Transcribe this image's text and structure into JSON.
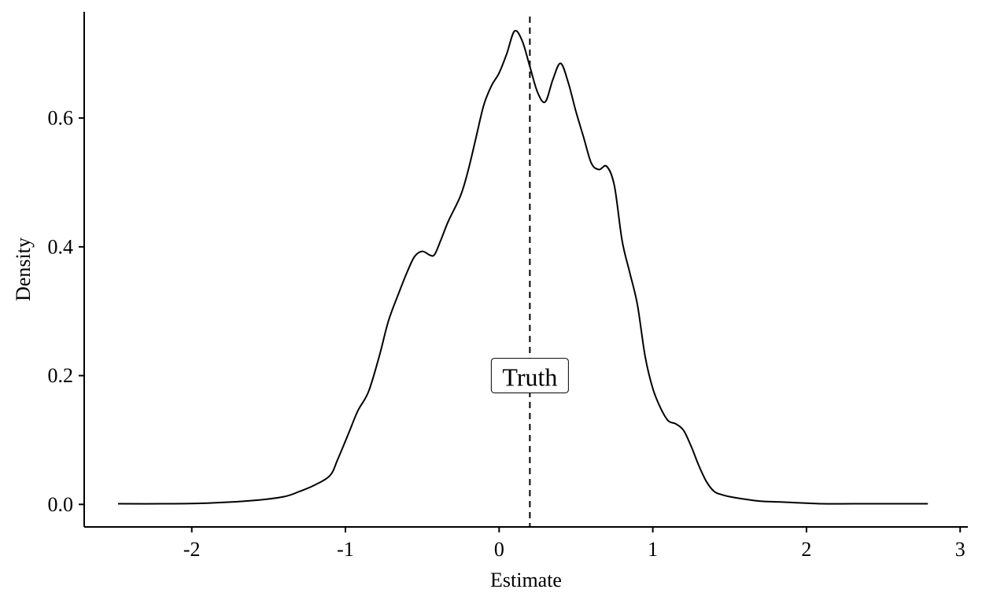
{
  "chart_data": {
    "type": "line",
    "subtype": "density",
    "title": "",
    "xlabel": "Estimate",
    "ylabel": "Density",
    "xlim": [
      -2.7,
      3.05
    ],
    "ylim": [
      -0.035,
      0.765
    ],
    "x_ticks": [
      -2,
      -1,
      0,
      1,
      2,
      3
    ],
    "x_tick_labels": [
      "-2",
      "-1",
      "0",
      "1",
      "2",
      "3"
    ],
    "y_ticks": [
      0.0,
      0.2,
      0.4,
      0.6
    ],
    "y_tick_labels": [
      "0.0",
      "0.2",
      "0.4",
      "0.6"
    ],
    "grid": false,
    "legend": "none",
    "series": [
      {
        "x": [
          -2.48,
          -2.2,
          -1.9,
          -1.6,
          -1.4,
          -1.3,
          -1.2,
          -1.1,
          -1.05,
          -0.98,
          -0.92,
          -0.85,
          -0.78,
          -0.72,
          -0.65,
          -0.6,
          -0.55,
          -0.5,
          -0.45,
          -0.42,
          -0.38,
          -0.33,
          -0.25,
          -0.2,
          -0.15,
          -0.1,
          -0.05,
          0.0,
          0.05,
          0.1,
          0.15,
          0.2,
          0.25,
          0.3,
          0.35,
          0.4,
          0.45,
          0.5,
          0.55,
          0.6,
          0.65,
          0.7,
          0.75,
          0.8,
          0.85,
          0.9,
          0.95,
          1.0,
          1.05,
          1.1,
          1.15,
          1.2,
          1.25,
          1.3,
          1.35,
          1.4,
          1.45,
          1.5,
          1.6,
          1.7,
          1.8,
          1.9,
          2.1,
          2.3,
          2.6,
          2.79
        ],
        "y": [
          0.001,
          0.001,
          0.002,
          0.006,
          0.012,
          0.02,
          0.03,
          0.045,
          0.07,
          0.11,
          0.145,
          0.175,
          0.23,
          0.285,
          0.33,
          0.36,
          0.385,
          0.393,
          0.387,
          0.388,
          0.41,
          0.44,
          0.48,
          0.52,
          0.57,
          0.62,
          0.65,
          0.67,
          0.7,
          0.735,
          0.72,
          0.68,
          0.64,
          0.625,
          0.66,
          0.685,
          0.655,
          0.61,
          0.57,
          0.53,
          0.52,
          0.525,
          0.495,
          0.41,
          0.36,
          0.31,
          0.23,
          0.18,
          0.15,
          0.13,
          0.125,
          0.115,
          0.09,
          0.06,
          0.035,
          0.02,
          0.015,
          0.012,
          0.008,
          0.005,
          0.004,
          0.003,
          0.001,
          0.001,
          0.001,
          0.001
        ]
      }
    ],
    "vline": {
      "x": 0.2,
      "style": "dashed"
    },
    "annotation": {
      "text": "Truth",
      "x": 0.2,
      "y": 0.2
    }
  }
}
